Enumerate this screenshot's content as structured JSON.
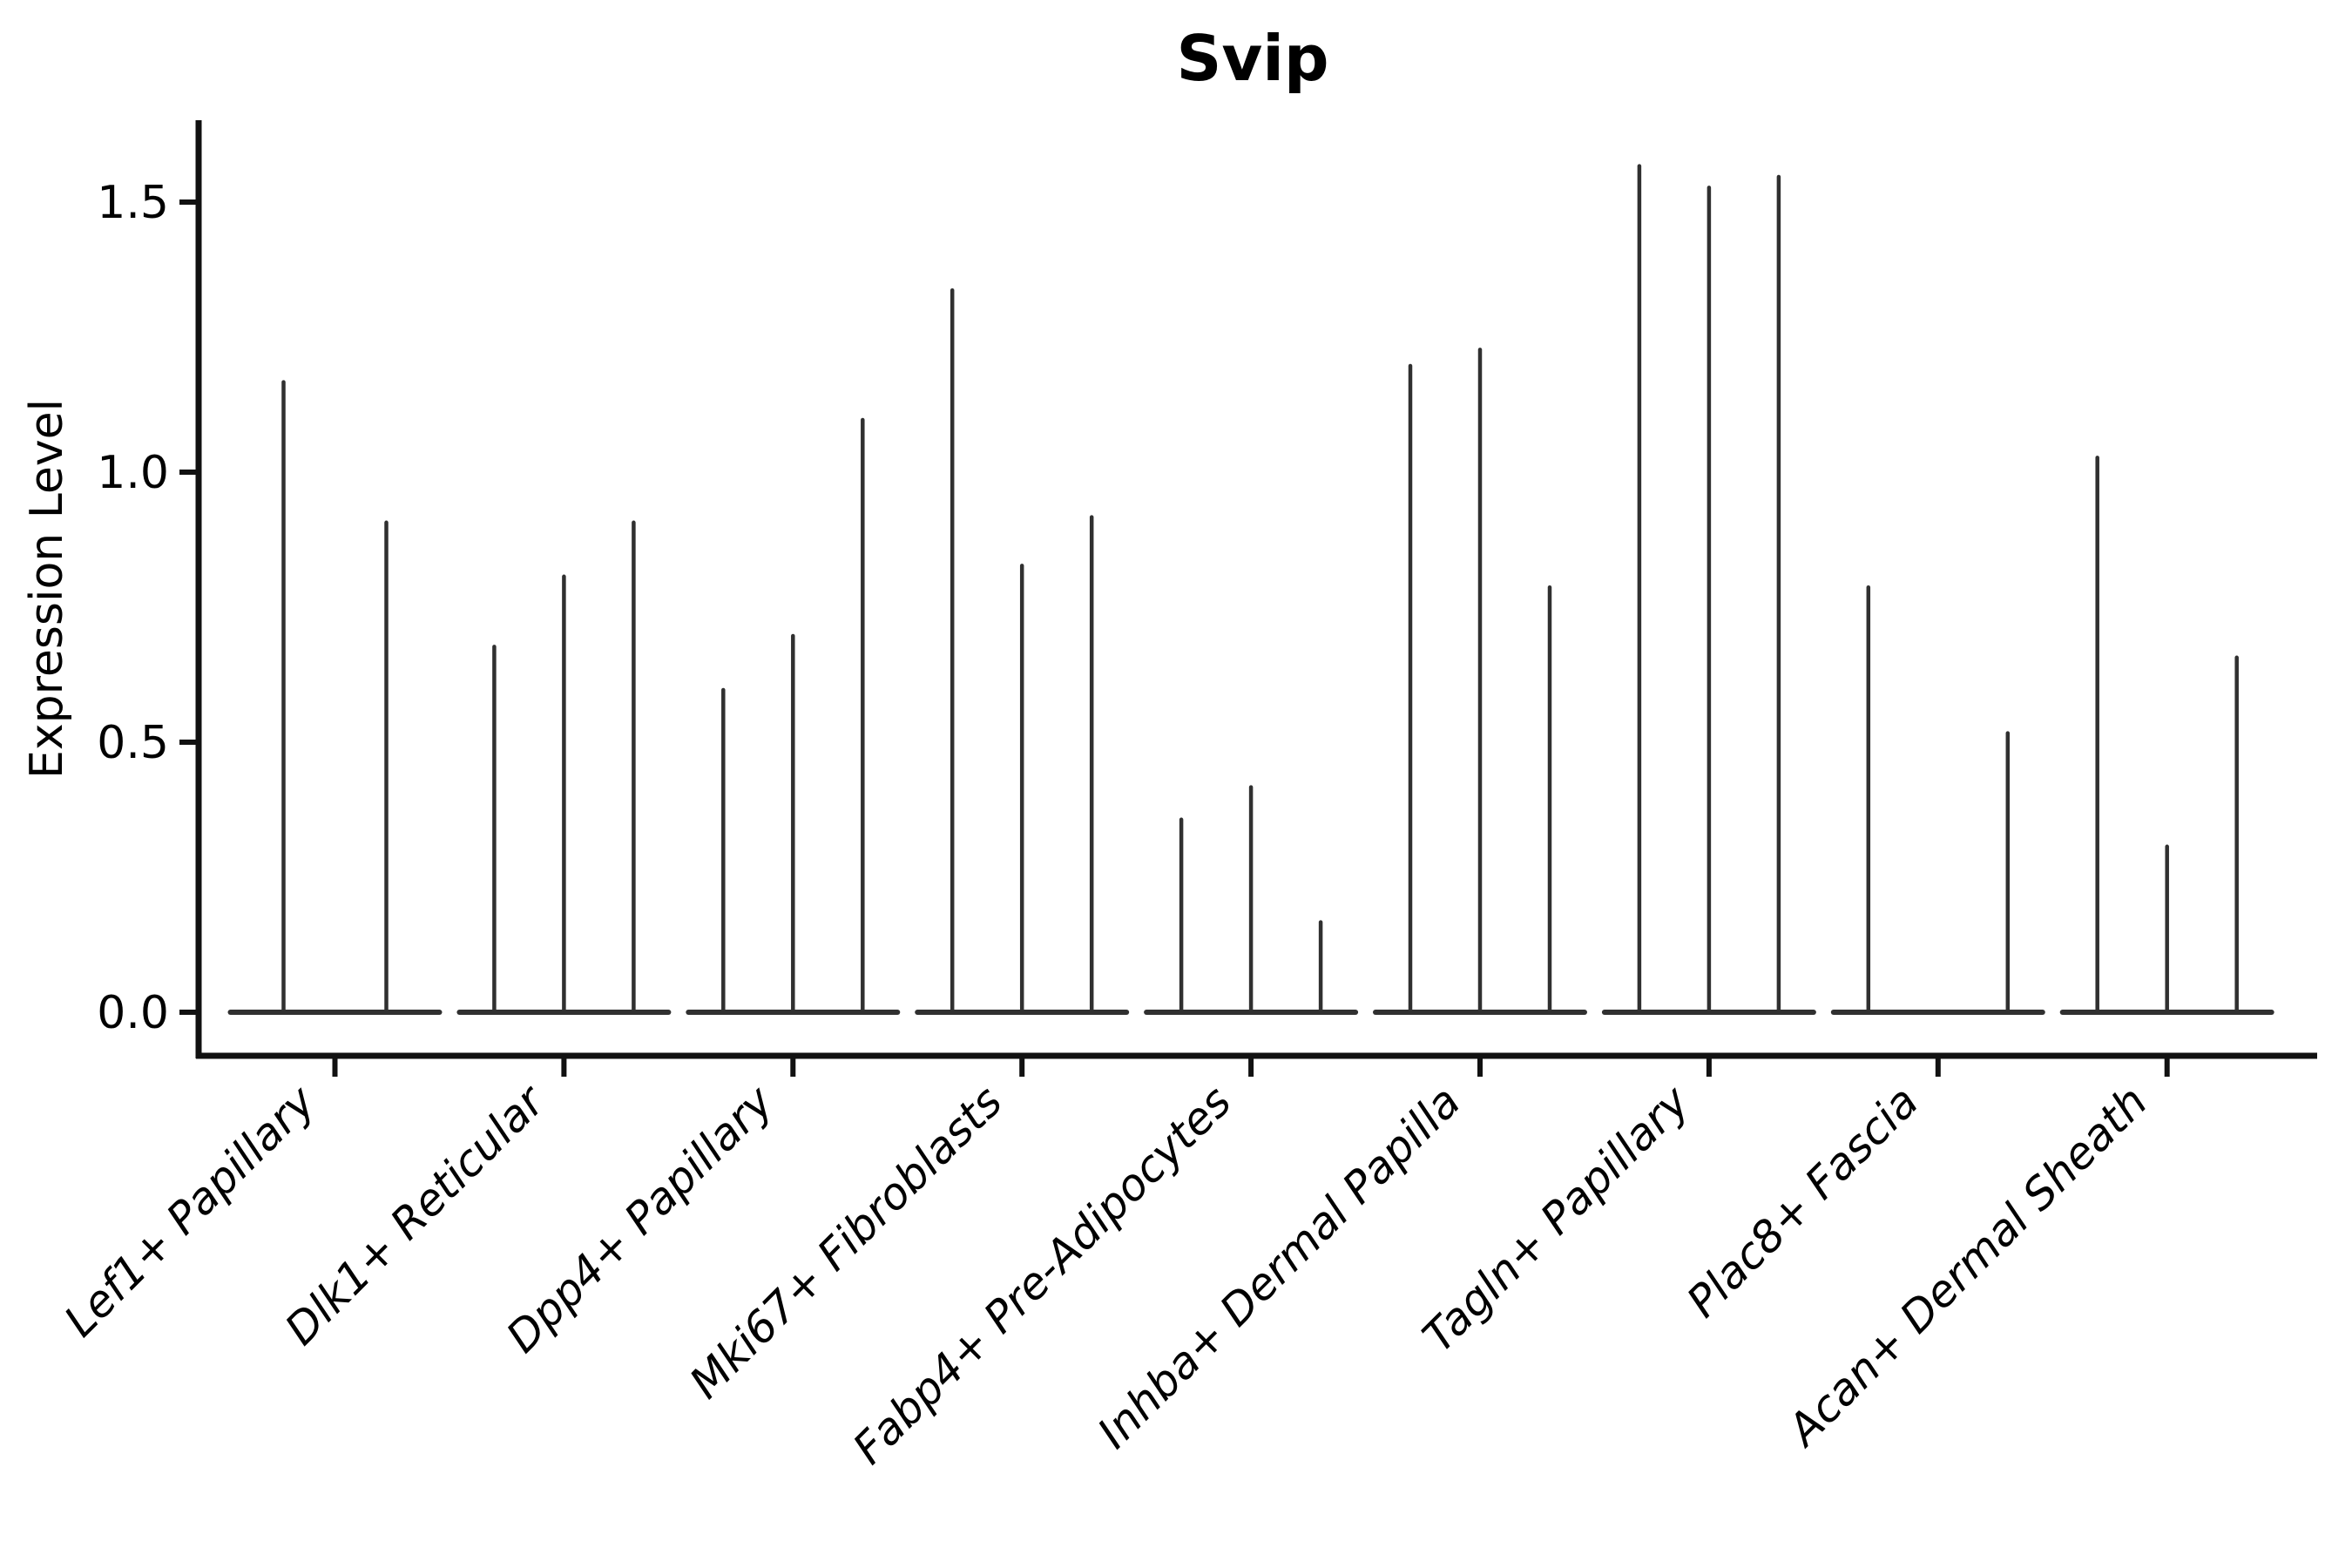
{
  "title": "Svip",
  "y_axis": {
    "label": "Expression Level",
    "tick_labels": [
      "0.0",
      "0.5",
      "1.0",
      "1.5"
    ]
  },
  "chart_data": {
    "type": "violin",
    "title": "Svip",
    "xlabel": "",
    "ylabel": "Expression Level",
    "yticks": [
      0.0,
      0.5,
      1.0,
      1.5
    ],
    "ytick_labels": [
      "0.0",
      "0.5",
      "1.0",
      "1.5"
    ],
    "ylim": [
      -0.08,
      1.65
    ],
    "grid": false,
    "legend": "none",
    "categories": [
      "Lef1+ Papillary",
      "Dlk1+ Reticular",
      "Dpp4+ Papillary",
      "Mki67+ Fibroblasts",
      "Fabp4+ Pre-Adipocytes",
      "Inhba+ Dermal Papilla",
      "Tagln+ Papillary",
      "Plac8+ Fascia",
      "Acan+ Dermal Sheath"
    ],
    "groups": [
      {
        "label": "Lef1+ Papillary",
        "violins": [
          {
            "offset": -59,
            "peak": 1.17
          },
          {
            "offset": 59,
            "peak": 0.91
          }
        ]
      },
      {
        "label": "Dlk1+ Reticular",
        "violins": [
          {
            "offset": -80,
            "peak": 0.68
          },
          {
            "offset": 0,
            "peak": 0.81
          },
          {
            "offset": 80,
            "peak": 0.91
          }
        ]
      },
      {
        "label": "Dpp4+ Papillary",
        "violins": [
          {
            "offset": -80,
            "peak": 0.6
          },
          {
            "offset": 0,
            "peak": 0.7
          },
          {
            "offset": 80,
            "peak": 1.1
          }
        ]
      },
      {
        "label": "Mki67+ Fibroblasts",
        "violins": [
          {
            "offset": -80,
            "peak": 1.34
          },
          {
            "offset": 0,
            "peak": 0.83
          },
          {
            "offset": 80,
            "peak": 0.92
          }
        ]
      },
      {
        "label": "Fabp4+ Pre-Adipocytes",
        "violins": [
          {
            "offset": -80,
            "peak": 0.36
          },
          {
            "offset": 0,
            "peak": 0.42
          },
          {
            "offset": 80,
            "peak": 0.17
          }
        ]
      },
      {
        "label": "Inhba+ Dermal Papilla",
        "violins": [
          {
            "offset": -80,
            "peak": 1.2
          },
          {
            "offset": 0,
            "peak": 1.23
          },
          {
            "offset": 80,
            "peak": 0.79
          }
        ]
      },
      {
        "label": "Tagln+ Papillary",
        "violins": [
          {
            "offset": -80,
            "peak": 1.57
          },
          {
            "offset": 0,
            "peak": 1.53
          },
          {
            "offset": 80,
            "peak": 1.55
          }
        ]
      },
      {
        "label": "Plac8+ Fascia",
        "violins": [
          {
            "offset": -80,
            "peak": 0.79
          },
          {
            "offset": 0,
            "peak": 0.0
          },
          {
            "offset": 80,
            "peak": 0.52
          }
        ]
      },
      {
        "label": "Acan+ Dermal Sheath",
        "violins": [
          {
            "offset": -80,
            "peak": 1.03
          },
          {
            "offset": 0,
            "peak": 0.31
          },
          {
            "offset": 80,
            "peak": 0.66
          }
        ]
      }
    ],
    "colors": {
      "violin_line": "#303030",
      "spine": "#111111",
      "text": "#000000",
      "background": "#ffffff"
    }
  }
}
